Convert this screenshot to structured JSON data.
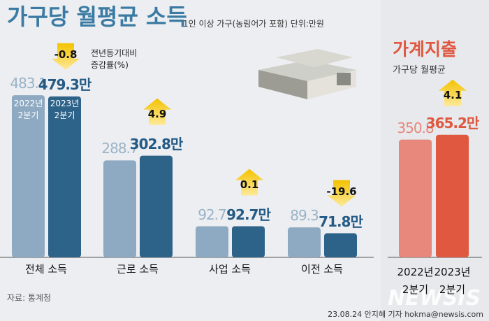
{
  "title": "가구당 월평균 소득",
  "subtitle": "1인 이상 가구(농림어가 포함) 단위:만원",
  "chart_data": [
    {
      "type": "bar",
      "categories": [
        "전체 소득",
        "근로 소득",
        "사업 소득",
        "이전 소득"
      ],
      "series": [
        {
          "name": "2022년 2분기",
          "color": "#8eaac2",
          "values": [
            483.1,
            288.7,
            92.7,
            89.3
          ]
        },
        {
          "name": "2023년 2분기",
          "color": "#2e6389",
          "values": [
            479.3,
            302.8,
            92.7,
            71.8
          ],
          "value_labels": [
            "479.3만",
            "302.8만",
            "92.7만",
            "71.8만"
          ]
        }
      ],
      "changes": [
        -0.8,
        4.9,
        0.1,
        -19.6
      ],
      "change_label": "전년동기대비 증감률(%)"
    },
    {
      "type": "bar",
      "title": "가계지출",
      "subtitle": "가구당 월평균",
      "categories": [
        "2022년 2분기",
        "2023년 2분기"
      ],
      "values": [
        350.8,
        365.2
      ],
      "value_labels": [
        "350.8",
        "365.2만"
      ],
      "colors": [
        "#e8877b",
        "#e0583f"
      ],
      "changes": [
        4.1
      ]
    }
  ],
  "source": "자료: 통계청",
  "credit": "23.08.24 안지혜 기자 hokma@newsis.com",
  "watermark": "NEWSIS"
}
